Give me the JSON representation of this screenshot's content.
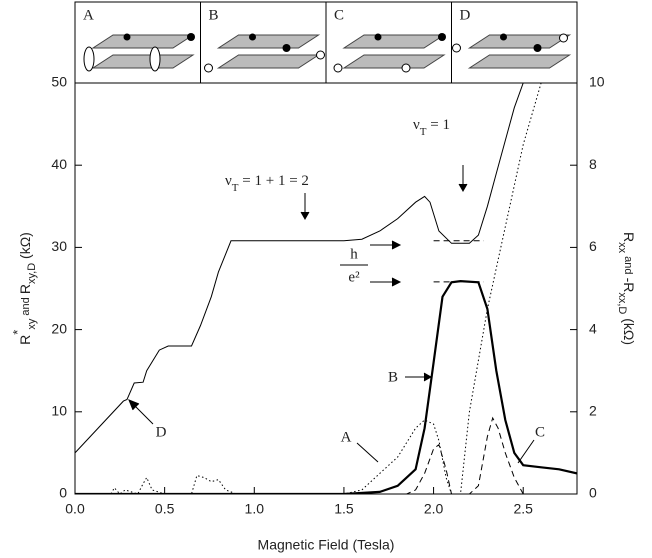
{
  "chart_data": {
    "type": "line",
    "inset_labels": [
      "A",
      "B",
      "C",
      "D"
    ],
    "xlabel": "Magnetic Field (Tesla)",
    "ylabel": [
      {
        "text": "R"
      },
      {
        "text": "*",
        "pos": "sup"
      },
      {
        "text": "xy",
        "pos": "sub"
      },
      {
        "text": " and ",
        "pos": "small"
      },
      {
        "text": "R"
      },
      {
        "text": "xy,D",
        "pos": "sub"
      },
      {
        "text": " (kΩ)"
      }
    ],
    "y2label": [
      {
        "text": "R"
      },
      {
        "text": "xx",
        "pos": "sub"
      },
      {
        "text": " and ",
        "pos": "small"
      },
      {
        "text": "-R"
      },
      {
        "text": "xx,D",
        "pos": "sub"
      },
      {
        "text": " (kΩ)"
      }
    ],
    "xlim": [
      0,
      2.8
    ],
    "xticks": [
      {
        "value": 0,
        "label": "0.0"
      },
      {
        "value": 0.5,
        "label": "0.5"
      },
      {
        "value": 1,
        "label": "1.0"
      },
      {
        "value": 1.5,
        "label": "1.5"
      },
      {
        "value": 2,
        "label": "2.0"
      },
      {
        "value": 2.5,
        "label": "2.5"
      }
    ],
    "ylim": [
      0,
      50
    ],
    "yticks": [
      0,
      10,
      20,
      30,
      40,
      50
    ],
    "y2lim": [
      0,
      10
    ],
    "y2ticks": [
      0,
      2,
      4,
      6,
      8,
      10
    ],
    "series": [
      {
        "color": "#000000",
        "style": "solid",
        "width": 1,
        "axis": "y",
        "x": [
          0,
          0.27,
          0.29,
          0.33,
          0.38,
          0.4,
          0.47,
          0.52,
          0.65,
          0.7,
          0.76,
          0.8,
          0.87,
          1.0,
          1.5,
          1.6,
          1.7,
          1.8,
          1.9,
          1.95,
          1.98,
          2.03,
          2.1,
          2.2,
          2.25,
          2.3,
          2.35,
          2.4,
          2.45,
          2.5
        ],
        "values": [
          5,
          11.3,
          11.5,
          13.5,
          13.6,
          15,
          17.5,
          18,
          18,
          20.5,
          24,
          27,
          30.8,
          30.8,
          30.8,
          31,
          32,
          33.5,
          35.5,
          36.2,
          35.5,
          32,
          30.5,
          30.5,
          31.5,
          35,
          39,
          43,
          47,
          50
        ]
      },
      {
        "color": "#000000",
        "style": "solid",
        "width": 2.2,
        "axis": "y2",
        "x": [
          0,
          1.5,
          1.7,
          1.8,
          1.9,
          1.95,
          2.0,
          2.05,
          2.1,
          2.15,
          2.25,
          2.3,
          2.35,
          2.4,
          2.45,
          2.5,
          2.6,
          2.7,
          2.8
        ],
        "values": [
          0,
          0,
          0.05,
          0.2,
          0.6,
          1.6,
          3.2,
          4.8,
          5.15,
          5.18,
          5.15,
          4.5,
          3.0,
          1.8,
          1.0,
          0.7,
          0.65,
          0.6,
          0.5
        ]
      },
      {
        "color": "#000000",
        "style": "dashed",
        "width": 1,
        "axis": "y2",
        "x": [
          0,
          1.85,
          1.9,
          1.95,
          2.0,
          2.03,
          2.07,
          2.1,
          2.2,
          2.25,
          2.3,
          2.33,
          2.36,
          2.4,
          2.45,
          2.5,
          2.55,
          2.6,
          2.8
        ],
        "values": [
          0,
          0,
          0.1,
          0.5,
          1.1,
          1.2,
          0.6,
          0,
          0,
          0.2,
          1.4,
          1.85,
          1.6,
          1.0,
          0.4,
          0,
          -0.1,
          0,
          0
        ]
      },
      {
        "color": "#000000",
        "style": "dotted",
        "width": 1,
        "axis": "y2",
        "x": [
          0,
          0.2,
          0.22,
          0.25,
          0.28,
          0.35,
          0.38,
          0.4,
          0.43,
          0.5,
          0.65,
          0.68,
          0.72,
          0.76,
          0.8,
          0.84,
          0.9,
          1.5,
          1.6,
          1.7,
          1.8,
          1.9,
          1.95,
          2.0,
          2.03,
          2.07,
          2.1,
          2.15,
          2.2,
          2.3,
          2.4,
          2.5,
          2.6
        ],
        "values": [
          0,
          0,
          0.15,
          0,
          0.1,
          0,
          0.25,
          0.4,
          0.1,
          0,
          0,
          0.45,
          0.4,
          0.3,
          0.35,
          0.1,
          0,
          0,
          0.1,
          0.5,
          0.9,
          1.6,
          1.8,
          1.7,
          1.3,
          0.4,
          0,
          0,
          2,
          4.5,
          6.5,
          8.5,
          10
        ]
      },
      {
        "color": "#000000",
        "style": "dashed",
        "width": 1,
        "axis": "y",
        "x": [
          2.0,
          2.28
        ],
        "values": [
          30.8,
          30.8
        ]
      },
      {
        "color": "#000000",
        "style": "dashed",
        "width": 1,
        "axis": "y",
        "x": [
          2.0,
          2.28
        ],
        "values": [
          25.8,
          25.8
        ]
      }
    ],
    "annotations": {
      "nu_two": [
        {
          "text": "ν"
        },
        {
          "text": "T",
          "pos": "sub"
        },
        {
          "text": " = 1 + 1 = 2"
        }
      ],
      "nu_one": [
        {
          "text": "ν"
        },
        {
          "text": "T",
          "pos": "sub"
        },
        {
          "text": " = 1"
        }
      ],
      "h": "h",
      "e2": "e²",
      "A": "A",
      "B": "B",
      "C": "C",
      "D": "D"
    }
  }
}
